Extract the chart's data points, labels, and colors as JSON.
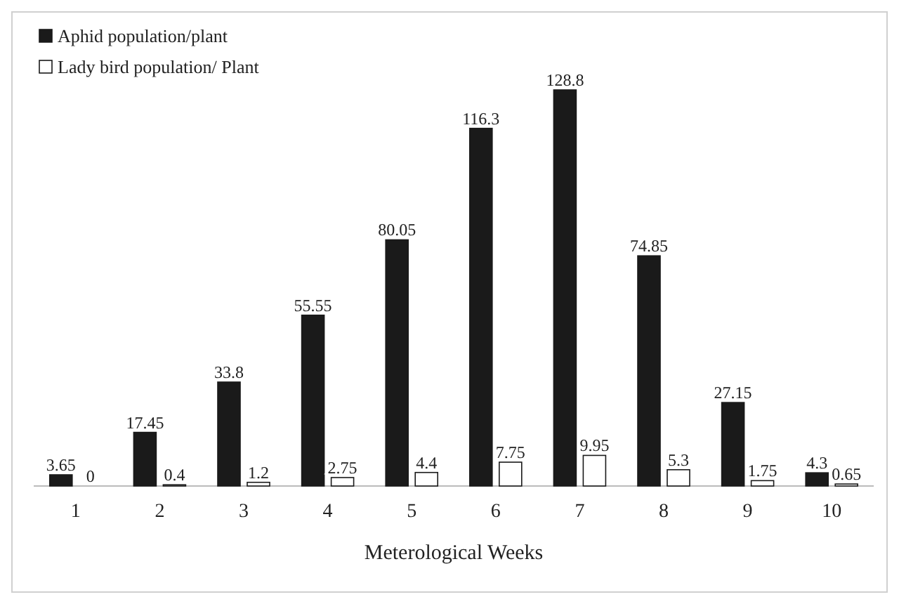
{
  "chart_data": {
    "type": "bar",
    "xlabel": "Meterological Weeks",
    "categories": [
      "1",
      "2",
      "3",
      "4",
      "5",
      "6",
      "7",
      "8",
      "9",
      "10"
    ],
    "series": [
      {
        "name": "Aphid population/plant",
        "color": "#1a1a1a",
        "values": [
          3.65,
          17.45,
          33.8,
          55.55,
          80.05,
          116.3,
          128.8,
          74.85,
          27.15,
          4.3
        ]
      },
      {
        "name": "Lady bird population/ Plant",
        "color": "#ffffff",
        "values": [
          0,
          0.4,
          1.2,
          2.75,
          4.4,
          7.75,
          9.95,
          5.3,
          1.75,
          0.65
        ]
      }
    ],
    "data_labels": true,
    "legend": "top left",
    "tick_labels": "x"
  }
}
